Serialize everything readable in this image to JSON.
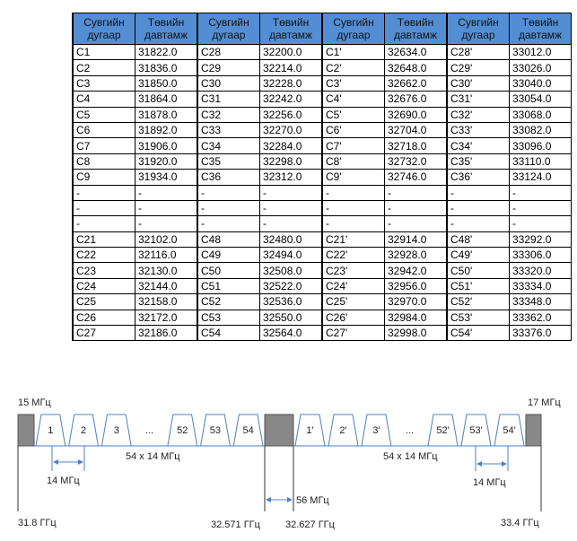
{
  "table": {
    "header": [
      [
        "Сувгийн",
        "дугаар"
      ],
      [
        "Төвийн",
        "давтамж"
      ],
      [
        "Сувгийн",
        "дугаар"
      ],
      [
        "Төвийн",
        "давтамж"
      ],
      [
        "Сувгийн",
        "дугаар"
      ],
      [
        "Төвийн",
        "давтамж"
      ],
      [
        "Сувгийн",
        "дугаар"
      ],
      [
        "Төвийн",
        "давтамж"
      ]
    ],
    "rows": [
      [
        "C1",
        "31822.0",
        "C28",
        "32200.0",
        "C1'",
        "32634.0",
        "C28'",
        "33012.0"
      ],
      [
        "C2",
        "31836.0",
        "C29",
        "32214.0",
        "C2'",
        "32648.0",
        "C29'",
        "33026.0"
      ],
      [
        "C3",
        "31850.0",
        "C30",
        "32228.0",
        "C3'",
        "32662.0",
        "C30'",
        "33040.0"
      ],
      [
        "C4",
        "31864.0",
        "C31",
        "32242.0",
        "C4'",
        "32676.0",
        "C31'",
        "33054.0"
      ],
      [
        "C5",
        "31878.0",
        "C32",
        "32256.0",
        "C5'",
        "32690.0",
        "C32'",
        "33068.0"
      ],
      [
        "C6",
        "31892.0",
        "C33",
        "32270.0",
        "C6'",
        "32704.0",
        "C33'",
        "33082.0"
      ],
      [
        "C7",
        "31906.0",
        "C34",
        "32284.0",
        "C7'",
        "32718.0",
        "C34'",
        "33096.0"
      ],
      [
        "C8",
        "31920.0",
        "C35",
        "32298.0",
        "C8'",
        "32732.0",
        "C35'",
        "33110.0"
      ],
      [
        "C9",
        "31934.0",
        "C36",
        "32312.0",
        "C9'",
        "32746.0",
        "C36'",
        "33124.0"
      ],
      [
        "-",
        "-",
        "-",
        "-",
        "-",
        "-",
        "-",
        "-"
      ],
      [
        "-",
        "-",
        "-",
        "-",
        "-",
        "-",
        "-",
        "-"
      ],
      [
        "-",
        "-",
        "-",
        "-",
        "-",
        "-",
        "-",
        "-"
      ],
      [
        "C21",
        "32102.0",
        "C48",
        "32480.0",
        "C21'",
        "32914.0",
        "C48'",
        "33292.0"
      ],
      [
        "C22",
        "32116.0",
        "C49",
        "32494.0",
        "C22'",
        "32928.0",
        "C49'",
        "33306.0"
      ],
      [
        "C23",
        "32130.0",
        "C50",
        "32508.0",
        "C23'",
        "32942.0",
        "C50'",
        "33320.0"
      ],
      [
        "C24",
        "32144.0",
        "C51",
        "32522.0",
        "C24'",
        "32956.0",
        "C51'",
        "33334.0"
      ],
      [
        "C25",
        "32158.0",
        "C52",
        "32536.0",
        "C25'",
        "32970.0",
        "C52'",
        "33348.0"
      ],
      [
        "C26",
        "32172.0",
        "C53",
        "32550.0",
        "C26'",
        "32984.0",
        "C53'",
        "33362.0"
      ],
      [
        "C27",
        "32186.0",
        "C54",
        "32564.0",
        "C27'",
        "32998.0",
        "C54'",
        "33376.0"
      ]
    ]
  },
  "diagram": {
    "guard_left": "15 МГц",
    "guard_right": "17 МГц",
    "channels_left": [
      "1",
      "2",
      "3",
      "...",
      "52",
      "53",
      "54"
    ],
    "channels_right": [
      "1'",
      "2'",
      "3'",
      "...",
      "52'",
      "53'",
      "54'"
    ],
    "span_left": "54 x 14 МГц",
    "span_right": "54 x 14 МГц",
    "spacing_left": "14 МГц",
    "spacing_right": "14 МГц",
    "gap": "56 МГц",
    "freqs": [
      "31.8 ГГц",
      "32.571 ГГц",
      "32.627 ГГц",
      "33.4 ГГц"
    ]
  }
}
